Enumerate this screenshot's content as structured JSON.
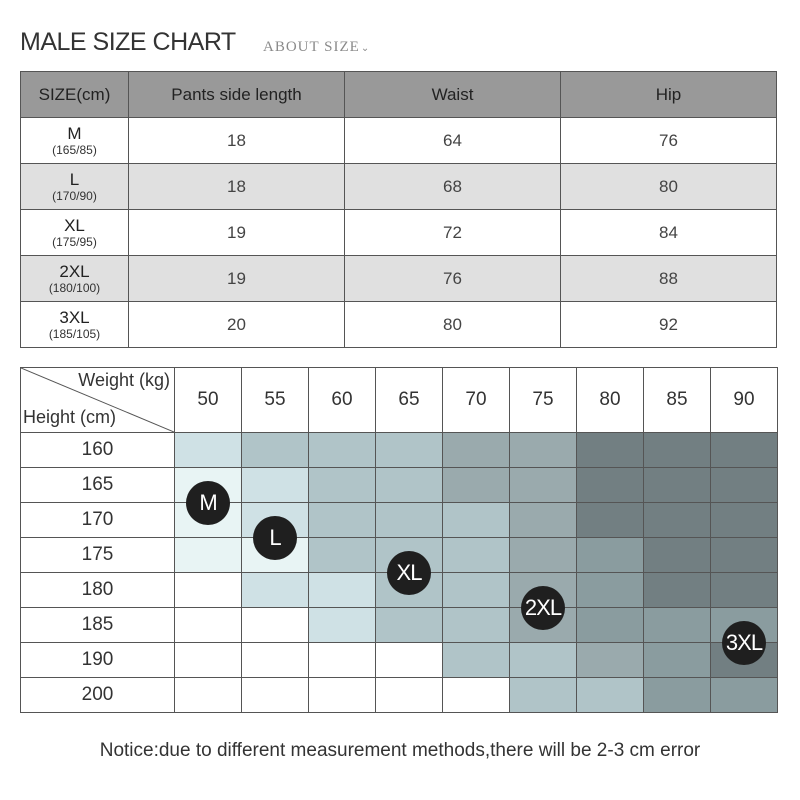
{
  "header": {
    "title": "MALE SIZE CHART",
    "about": "ABOUT  SIZE"
  },
  "measure_table": {
    "headers": [
      "SIZE(cm)",
      "Pants side length",
      "Waist",
      "Hip"
    ],
    "rows": [
      {
        "size": "M",
        "spec": "(165/85)",
        "pants": "18",
        "waist": "64",
        "hip": "76"
      },
      {
        "size": "L",
        "spec": "(170/90)",
        "pants": "18",
        "waist": "68",
        "hip": "80"
      },
      {
        "size": "XL",
        "spec": "(175/95)",
        "pants": "19",
        "waist": "72",
        "hip": "84"
      },
      {
        "size": "2XL",
        "spec": "(180/100)",
        "pants": "19",
        "waist": "76",
        "hip": "88"
      },
      {
        "size": "3XL",
        "spec": "(185/105)",
        "pants": "20",
        "waist": "80",
        "hip": "92"
      }
    ]
  },
  "grid": {
    "weight_label": "Weight (kg)",
    "height_label": "Height (cm)",
    "weights": [
      "50",
      "55",
      "60",
      "65",
      "70",
      "75",
      "80",
      "85",
      "90"
    ],
    "heights": [
      "160",
      "165",
      "170",
      "175",
      "180",
      "185",
      "190",
      "200"
    ],
    "shade_colors": [
      "#ffffff",
      "#e8f4f4",
      "#cfe1e5",
      "#b0c4c8",
      "#9aaaad",
      "#8a9c9f",
      "#727f82"
    ],
    "shade_levels": [
      [
        2,
        3,
        3,
        3,
        4,
        4,
        6,
        6,
        6
      ],
      [
        1,
        2,
        3,
        3,
        4,
        4,
        6,
        6,
        6
      ],
      [
        1,
        2,
        3,
        3,
        3,
        4,
        6,
        6,
        6
      ],
      [
        1,
        1,
        3,
        3,
        3,
        4,
        5,
        6,
        6
      ],
      [
        0,
        2,
        2,
        3,
        3,
        4,
        5,
        6,
        6
      ],
      [
        0,
        0,
        2,
        3,
        3,
        4,
        5,
        5,
        5
      ],
      [
        0,
        0,
        0,
        0,
        3,
        3,
        4,
        5,
        6
      ],
      [
        0,
        0,
        0,
        0,
        0,
        3,
        3,
        5,
        5
      ]
    ],
    "badges": [
      {
        "label": "M",
        "weight": "50",
        "height": "165"
      },
      {
        "label": "L",
        "weight": "55",
        "height": "170"
      },
      {
        "label": "XL",
        "weight": "65",
        "height": "175"
      },
      {
        "label": "2XL",
        "weight": "75",
        "height": "180"
      },
      {
        "label": "3XL",
        "weight": "90",
        "height": "185"
      }
    ]
  },
  "notice": "Notice:due to different measurement methods,there will be 2-3 cm error"
}
